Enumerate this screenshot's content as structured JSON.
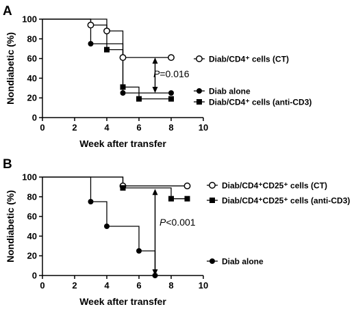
{
  "chart_data": [
    {
      "panel": "A",
      "type": "line",
      "xlabel": "Week after transfer",
      "ylabel": "Nondiabetic (%)",
      "xlim": [
        0,
        10
      ],
      "ylim": [
        0,
        100
      ],
      "xticks": [
        "0",
        "2",
        "4",
        "6",
        "8",
        "10"
      ],
      "yticks": [
        "0",
        "20",
        "40",
        "60",
        "80",
        "100"
      ],
      "series": [
        {
          "name": "Diab/CD4⁺ cells (CT)",
          "marker": "open-circle",
          "steps": [
            [
              0,
              100
            ],
            [
              3,
              94
            ],
            [
              4,
              88
            ],
            [
              5,
              61
            ],
            [
              8,
              61
            ]
          ],
          "points": [
            [
              3,
              94
            ],
            [
              4,
              88
            ],
            [
              5,
              61
            ],
            [
              8,
              61
            ]
          ]
        },
        {
          "name": "Diab alone",
          "marker": "filled-circle",
          "steps": [
            [
              0,
              100
            ],
            [
              3,
              75
            ],
            [
              5,
              25
            ],
            [
              8,
              25
            ]
          ],
          "points": [
            [
              3,
              75
            ],
            [
              5,
              25
            ],
            [
              8,
              25
            ]
          ]
        },
        {
          "name": "Diab/CD4⁺ cells (anti-CD3)",
          "marker": "filled-square",
          "steps": [
            [
              0,
              100
            ],
            [
              4,
              69
            ],
            [
              5,
              31
            ],
            [
              6,
              19
            ],
            [
              8,
              19
            ]
          ],
          "points": [
            [
              4,
              69
            ],
            [
              5,
              31
            ],
            [
              6,
              19
            ],
            [
              8,
              19
            ]
          ]
        }
      ],
      "annotation": {
        "text": "P=0.016",
        "italic": "P",
        "rest": "=0.016",
        "x": 7,
        "y_from": 61,
        "y_to": 25
      }
    },
    {
      "panel": "B",
      "type": "line",
      "xlabel": "Week after transfer",
      "ylabel": "Nondiabetic (%)",
      "xlim": [
        0,
        10
      ],
      "ylim": [
        0,
        100
      ],
      "xticks": [
        "0",
        "2",
        "4",
        "6",
        "8",
        "10"
      ],
      "yticks": [
        "0",
        "20",
        "40",
        "60",
        "80",
        "100"
      ],
      "series": [
        {
          "name": "Diab/CD4⁺CD25⁺ cells (CT)",
          "marker": "open-circle",
          "steps": [
            [
              0,
              100
            ],
            [
              5,
              91
            ],
            [
              9,
              91
            ]
          ],
          "points": [
            [
              5,
              91
            ],
            [
              9,
              91
            ]
          ]
        },
        {
          "name": "Diab/CD4⁺CD25⁺ cells (anti-CD3)",
          "marker": "filled-square",
          "steps": [
            [
              0,
              100
            ],
            [
              5,
              89
            ],
            [
              8,
              78
            ],
            [
              9,
              78
            ]
          ],
          "points": [
            [
              5,
              89
            ],
            [
              8,
              78
            ],
            [
              9,
              78
            ]
          ]
        },
        {
          "name": "Diab alone",
          "marker": "filled-circle",
          "steps": [
            [
              0,
              100
            ],
            [
              3,
              75
            ],
            [
              4,
              50
            ],
            [
              6,
              25
            ],
            [
              7,
              0
            ]
          ],
          "points": [
            [
              3,
              75
            ],
            [
              4,
              50
            ],
            [
              6,
              25
            ],
            [
              7,
              0
            ]
          ]
        }
      ],
      "annotation": {
        "text": "P<0.001",
        "italic": "P",
        "rest": "<0.001",
        "x": 7,
        "y_from": 88,
        "y_to": 0
      }
    }
  ]
}
